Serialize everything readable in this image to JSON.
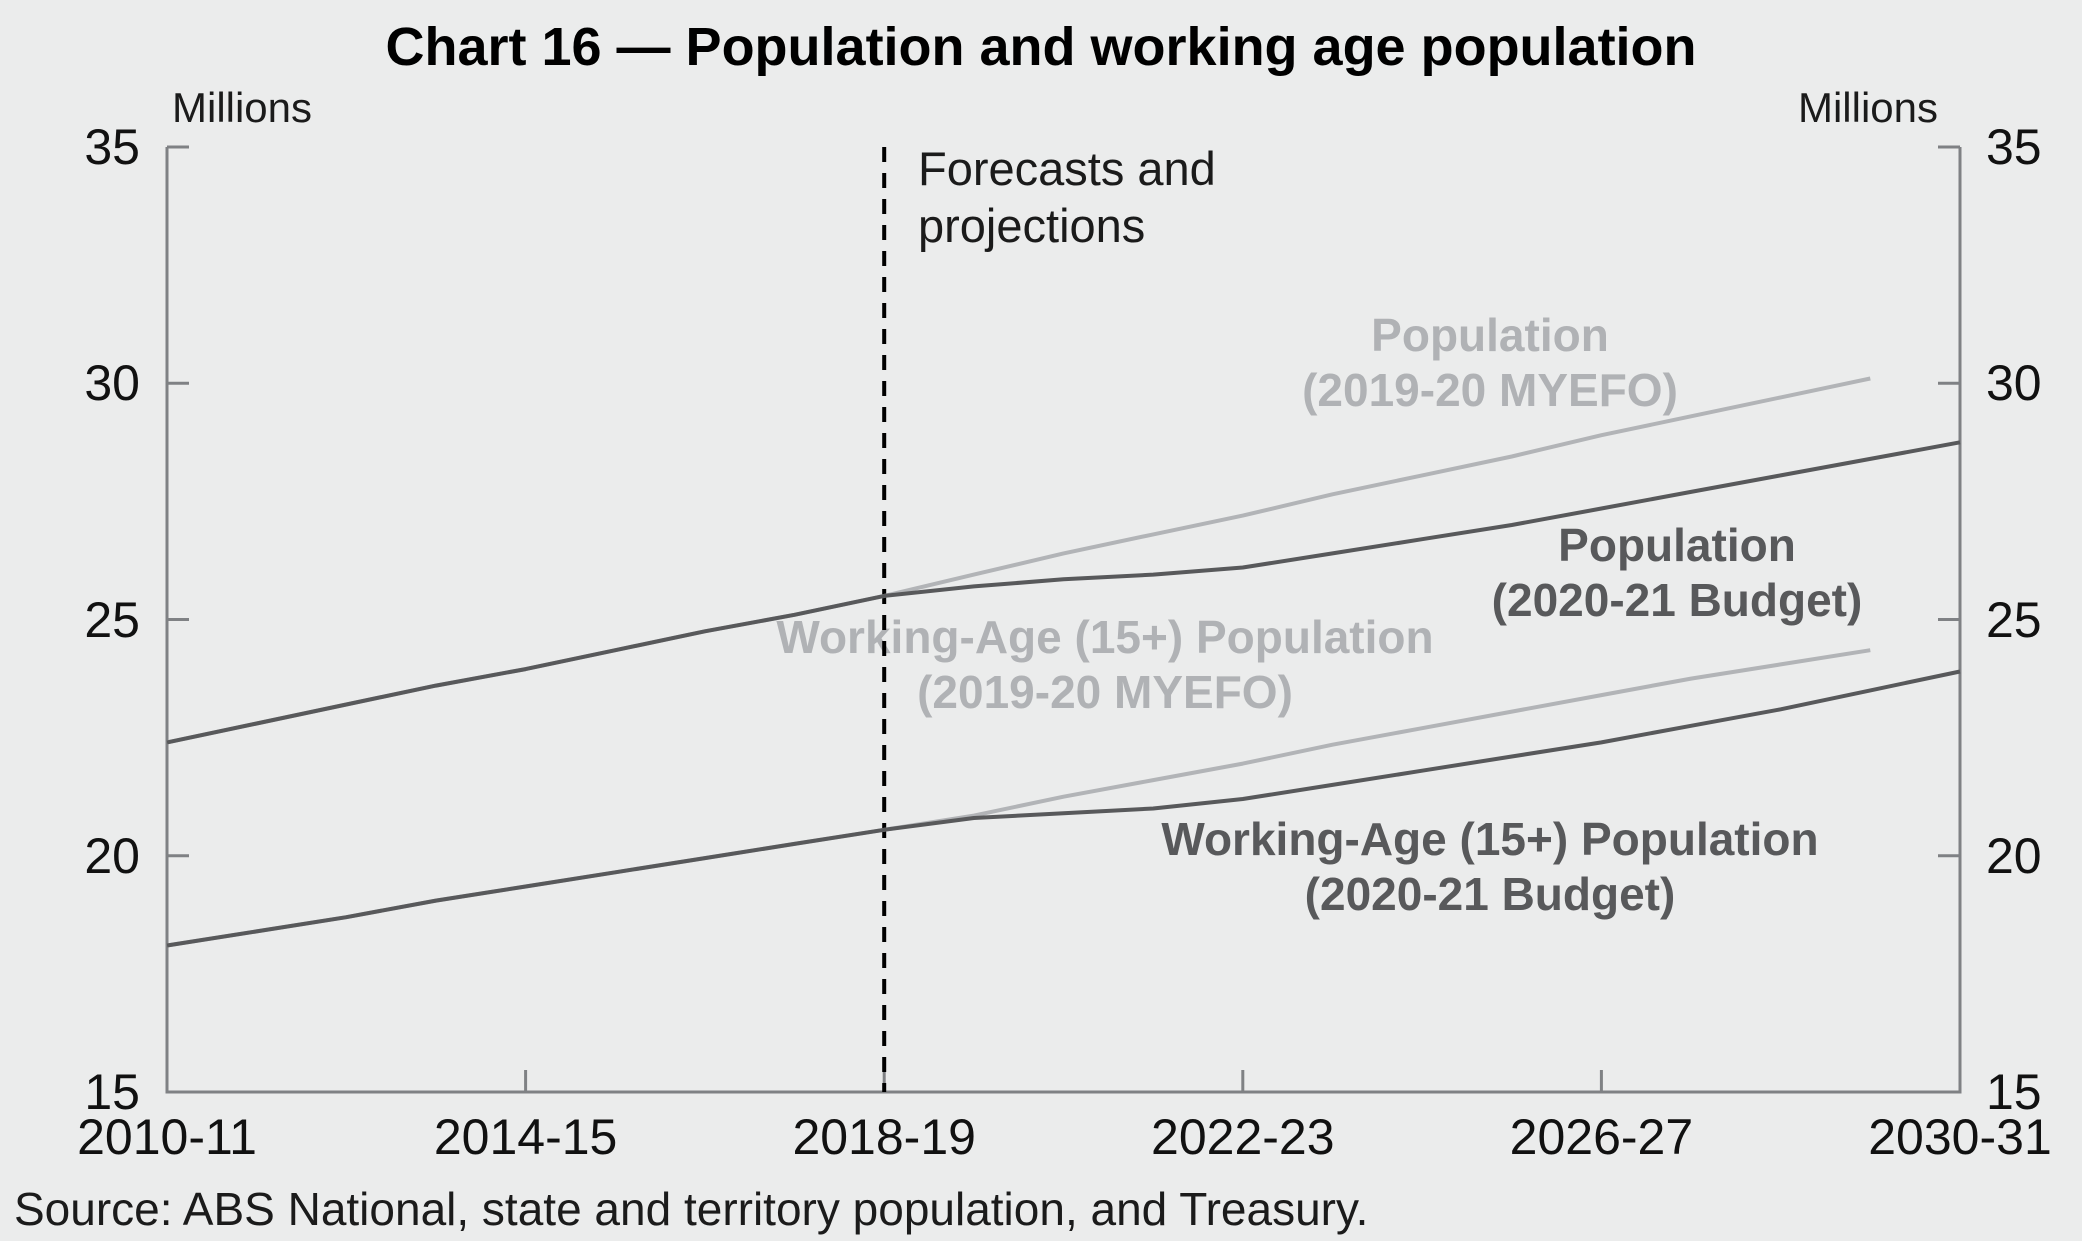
{
  "title": "Chart 16 — Population and working age population",
  "axis": {
    "unit_label_left": "Millions",
    "unit_label_right": "Millions",
    "y_ticks": [
      35,
      30,
      25,
      20,
      15
    ],
    "x_ticks": [
      "2010-11",
      "2014-15",
      "2018-19",
      "2022-23",
      "2026-27",
      "2030-31"
    ]
  },
  "annotation": {
    "line1": "Forecasts and",
    "line2": "projections"
  },
  "series_labels": {
    "pop_myefo": [
      "Population",
      "(2019-20 MYEFO)"
    ],
    "pop_budget": [
      "Population",
      "(2020-21 Budget)"
    ],
    "wa_myefo": [
      "Working-Age (15+) Population",
      "(2019-20 MYEFO)"
    ],
    "wa_budget": [
      "Working-Age (15+) Population",
      "(2020-21 Budget)"
    ]
  },
  "source": "Source: ABS National, state and territory population, and Treasury.",
  "colors": {
    "dark": "#58595b",
    "light": "#b2b4b7",
    "axis": "#7f8184",
    "dashed": "#000000",
    "background": "#ebecec",
    "text": "#1b1b1b"
  },
  "chart_data": {
    "type": "line",
    "title": "Chart 16 — Population and working age population",
    "ylabel": "Millions",
    "ylim": [
      15,
      35
    ],
    "y_tick_step": 5,
    "grid": false,
    "legend_position": "inline-labels",
    "forecast_divider_x": "2018-19",
    "x_years": [
      "2010-11",
      "2011-12",
      "2012-13",
      "2013-14",
      "2014-15",
      "2015-16",
      "2016-17",
      "2017-18",
      "2018-19",
      "2019-20",
      "2020-21",
      "2021-22",
      "2022-23",
      "2023-24",
      "2024-25",
      "2025-26",
      "2026-27",
      "2027-28",
      "2028-29",
      "2029-30",
      "2030-31"
    ],
    "series": [
      {
        "id": "pop_myefo",
        "name": "Population (2019-20 MYEFO)",
        "color_role": "light",
        "values": [
          22.4,
          22.8,
          23.2,
          23.6,
          23.95,
          24.35,
          24.75,
          25.1,
          25.5,
          25.95,
          26.4,
          26.8,
          27.2,
          27.65,
          28.05,
          28.45,
          28.9,
          29.3,
          29.7,
          30.1
        ]
      },
      {
        "id": "pop_budget",
        "name": "Population (2020-21 Budget)",
        "color_role": "dark",
        "values": [
          22.4,
          22.8,
          23.2,
          23.6,
          23.95,
          24.35,
          24.75,
          25.1,
          25.5,
          25.7,
          25.85,
          25.95,
          26.1,
          26.4,
          26.7,
          27.0,
          27.35,
          27.7,
          28.05,
          28.4,
          28.75
        ]
      },
      {
        "id": "wa_myefo",
        "name": "Working-Age (15+) Population (2019-20 MYEFO)",
        "color_role": "light",
        "values": [
          18.1,
          18.4,
          18.7,
          19.05,
          19.35,
          19.65,
          19.95,
          20.25,
          20.55,
          20.85,
          21.25,
          21.6,
          21.95,
          22.35,
          22.7,
          23.05,
          23.4,
          23.75,
          24.05,
          24.35
        ]
      },
      {
        "id": "wa_budget",
        "name": "Working-Age (15+) Population (2020-21 Budget)",
        "color_role": "dark",
        "values": [
          18.1,
          18.4,
          18.7,
          19.05,
          19.35,
          19.65,
          19.95,
          20.25,
          20.55,
          20.8,
          20.9,
          21.0,
          21.2,
          21.5,
          21.8,
          22.1,
          22.4,
          22.75,
          23.1,
          23.5,
          23.9
        ]
      }
    ]
  }
}
